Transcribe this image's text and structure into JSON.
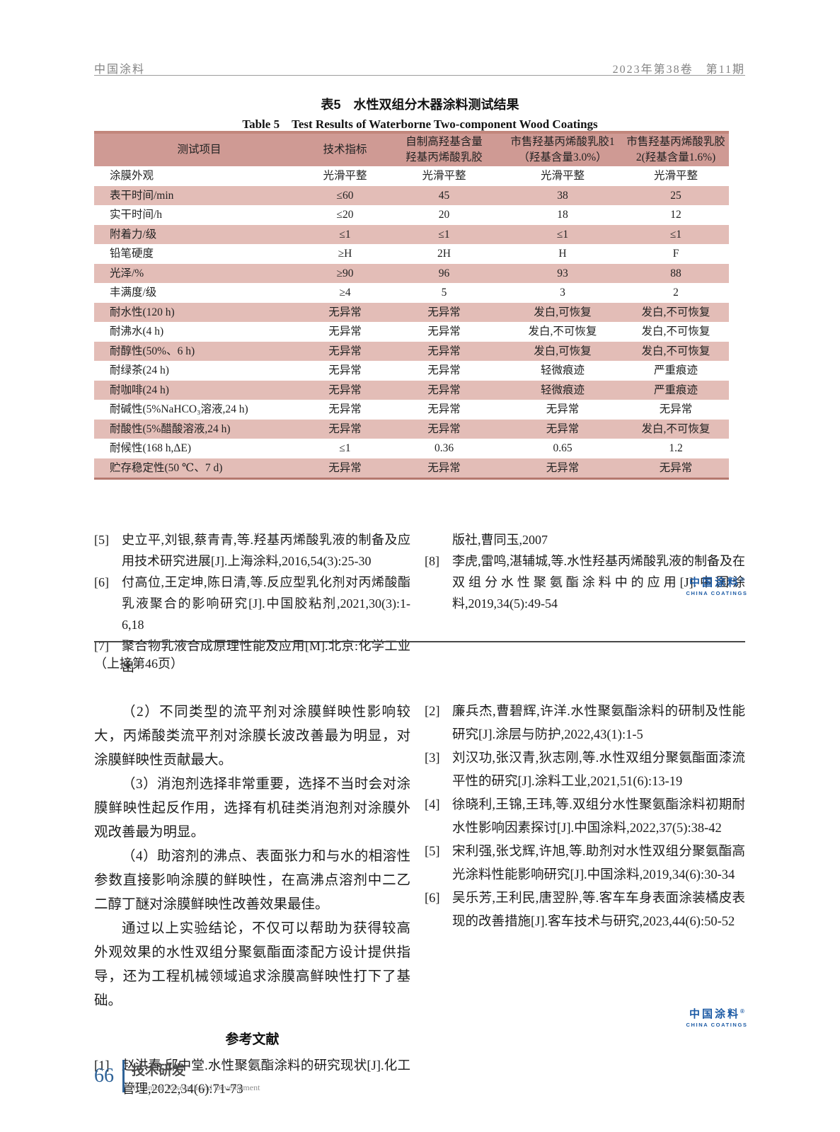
{
  "header": {
    "journal": "中国涂料",
    "issue": "2023年第38卷　第11期"
  },
  "table": {
    "title_zh": "表5　水性双组分木器涂料测试结果",
    "title_en": "Table 5　Test Results of Waterborne Two-component Wood Coatings",
    "columns": [
      "测试项目",
      "技术指标",
      "自制高羟基含量\n羟基丙烯酸乳胶",
      "市售羟基丙烯酸乳胶1\n（羟基含量3.0%）",
      "市售羟基丙烯酸乳胶\n2(羟基含量1.6%)"
    ],
    "rows": [
      [
        "涂膜外观",
        "光滑平整",
        "光滑平整",
        "光滑平整",
        "光滑平整"
      ],
      [
        "表干时间/min",
        "≤60",
        "45",
        "38",
        "25"
      ],
      [
        "实干时间/h",
        "≤20",
        "20",
        "18",
        "12"
      ],
      [
        "附着力/级",
        "≤1",
        "≤1",
        "≤1",
        "≤1"
      ],
      [
        "铅笔硬度",
        "≥H",
        "2H",
        "H",
        "F"
      ],
      [
        "光泽/%",
        "≥90",
        "96",
        "93",
        "88"
      ],
      [
        "丰满度/级",
        "≥4",
        "5",
        "3",
        "2"
      ],
      [
        "耐水性(120 h)",
        "无异常",
        "无异常",
        "发白,可恢复",
        "发白,不可恢复"
      ],
      [
        "耐沸水(4 h)",
        "无异常",
        "无异常",
        "发白,不可恢复",
        "发白,不可恢复"
      ],
      [
        "耐醇性(50%、6 h)",
        "无异常",
        "无异常",
        "发白,可恢复",
        "发白,不可恢复"
      ],
      [
        "耐绿茶(24 h)",
        "无异常",
        "无异常",
        "轻微痕迹",
        "严重痕迹"
      ],
      [
        "耐咖啡(24 h)",
        "无异常",
        "无异常",
        "轻微痕迹",
        "严重痕迹"
      ],
      [
        "耐碱性(5%NaHCO₃溶液,24 h)",
        "无异常",
        "无异常",
        "无异常",
        "无异常"
      ],
      [
        "耐酸性(5%醋酸溶液,24 h)",
        "无异常",
        "无异常",
        "无异常",
        "发白,不可恢复"
      ],
      [
        "耐候性(168 h,ΔE)",
        "≤1",
        "0.36",
        "0.65",
        "1.2"
      ],
      [
        "贮存稳定性(50 ℃、7 d)",
        "无异常",
        "无异常",
        "无异常",
        "无异常"
      ]
    ]
  },
  "refs_top_left": [
    {
      "num": "[5]",
      "text": "史立平,刘银,蔡青青,等.羟基丙烯酸乳液的制备及应用技术研究进展[J].上海涂料,2016,54(3):25-30"
    },
    {
      "num": "[6]",
      "text": "付高位,王定坤,陈日清,等.反应型乳化剂对丙烯酸酯乳液聚合的影响研究[J].中国胶粘剂,2021,30(3):1-6,18"
    },
    {
      "num": "[7]",
      "text": "聚合物乳液合成原理性能及应用[M].北京:化学工业出"
    }
  ],
  "refs_top_right": [
    {
      "num": "",
      "text": "版社,曹同玉,2007"
    },
    {
      "num": "[8]",
      "text": "李虎,雷鸣,湛辅城,等.水性羟基丙烯酸乳液的制备及在双组分水性聚氨酯涂料中的应用[J].中国涂料,2019,34(5):49-54"
    }
  ],
  "continuation_note": "（上接第46页）",
  "body": {
    "paragraphs": [
      "（2）不同类型的流平剂对涂膜鲜映性影响较大，丙烯酸类流平剂对涂膜长波改善最为明显，对涂膜鲜映性贡献最大。",
      "（3）消泡剂选择非常重要，选择不当时会对涂膜鲜映性起反作用，选择有机硅类消泡剂对涂膜外观改善最为明显。",
      "（4）助溶剂的沸点、表面张力和与水的相溶性参数直接影响涂膜的鲜映性，在高沸点溶剂中二乙二醇丁醚对涂膜鲜映性改善效果最佳。",
      "通过以上实验结论，不仅可以帮助为获得较高外观效果的水性双组分聚氨酯面漆配方设计提供指导，还为工程机械领域追求涂膜高鲜映性打下了基础。"
    ]
  },
  "references_heading": "参考文献",
  "refs_bottom_left": [
    {
      "num": "[1]",
      "text": "赵洪春,邱中堂.水性聚氨酯涂料的研究现状[J].化工管理,2022,34(6):71-73"
    }
  ],
  "refs_bottom_right": [
    {
      "num": "[2]",
      "text": "廉兵杰,曹碧辉,许洋.水性聚氨酯涂料的研制及性能研究[J].涂层与防护,2022,43(1):1-5"
    },
    {
      "num": "[3]",
      "text": "刘汉功,张汉青,狄志刚,等.水性双组分聚氨酯面漆流平性的研究[J].涂料工业,2021,51(6):13-19"
    },
    {
      "num": "[4]",
      "text": "徐晓利,王锦,王玮,等.双组分水性聚氨酯涂料初期耐水性影响因素探讨[J].中国涂料,2022,37(5):38-42"
    },
    {
      "num": "[5]",
      "text": "宋利强,张戈辉,许旭,等.助剂对水性双组分聚氨酯高光涂料性能影响研究[J].中国涂料,2019,34(6):30-34"
    },
    {
      "num": "[6]",
      "text": "吴乐芳,王利民,唐翌肸,等.客车车身表面涂装橘皮表现的改善措施[J].客车技术与研究,2023,44(6):50-52"
    }
  ],
  "logo": {
    "zh": "中国涂料",
    "reg": "®",
    "en": "CHINA COATINGS"
  },
  "footer": {
    "page_number": "66",
    "section_zh": "技术研发",
    "section_en": "Technical Research and Development"
  },
  "colors": {
    "table_header_bg": "#cf9a94",
    "table_stripe_bg": "#e3bdb7",
    "table_border": "#c2867c",
    "brand_blue": "#1d5ba5",
    "footer_blue": "#2f6398"
  }
}
